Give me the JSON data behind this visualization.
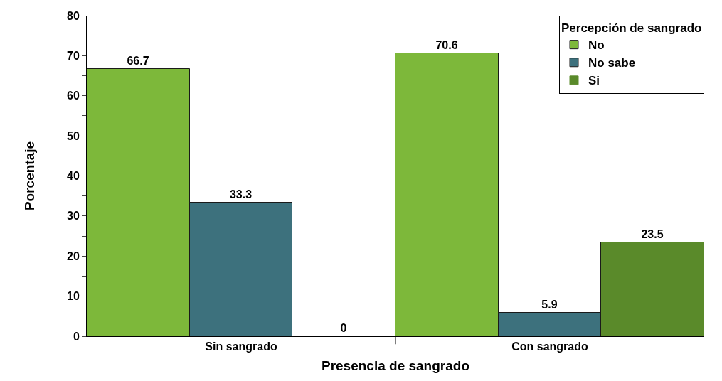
{
  "chart_data": {
    "type": "bar",
    "categories": [
      "Sin sangrado",
      "Con sangrado"
    ],
    "xlabel": "Presencia de sangrado",
    "ylabel": "Porcentaje",
    "legend_title": "Percepción de sangrado",
    "series": [
      {
        "name": "No",
        "color": "#7db83a",
        "values": [
          66.7,
          70.6
        ]
      },
      {
        "name": "No sabe",
        "color": "#3d717d",
        "values": [
          33.3,
          5.9
        ]
      },
      {
        "name": "Si",
        "color": "#5a8a2a",
        "values": [
          0,
          23.5
        ]
      }
    ],
    "ylim": [
      0,
      80
    ],
    "yticks": [
      0,
      {
        "value": 5,
        "label": null
      },
      10,
      {
        "value": 15,
        "label": null
      },
      20,
      {
        "value": 25,
        "label": null
      },
      30,
      {
        "value": 35,
        "label": null
      },
      40,
      {
        "value": 45,
        "label": null
      },
      50,
      {
        "value": 55,
        "label": null
      },
      60,
      {
        "value": 65,
        "label": null
      },
      70,
      {
        "value": 75,
        "label": null
      },
      80
    ],
    "data_labels": true,
    "legend": "top right"
  }
}
